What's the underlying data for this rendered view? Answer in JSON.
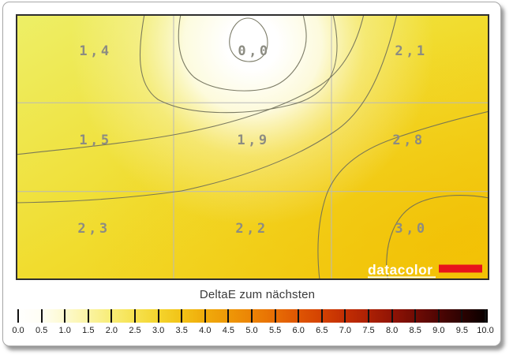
{
  "chart_data": {
    "type": "heatmap",
    "title": "DeltaE zum nächsten",
    "grid": {
      "rows": 3,
      "cols": 3
    },
    "values": [
      [
        1.4,
        0.0,
        2.1
      ],
      [
        1.5,
        1.9,
        2.8
      ],
      [
        2.3,
        2.2,
        3.0
      ]
    ],
    "value_labels": [
      [
        "1,4",
        "0,0",
        "2,1"
      ],
      [
        "1,5",
        "1,9",
        "2,8"
      ],
      [
        "2,3",
        "2,2",
        "3,0"
      ]
    ],
    "value_min_location": "top-center",
    "value_max_location": "bottom-right",
    "colorbar": {
      "min": 0.0,
      "max": 10.0,
      "step": 0.5,
      "tick_labels": [
        "0.0",
        "0.5",
        "1.0",
        "1.5",
        "2.0",
        "2.5",
        "3.0",
        "3.5",
        "4.0",
        "4.5",
        "5.0",
        "5.5",
        "6.0",
        "6.5",
        "7.0",
        "7.5",
        "8.0",
        "8.5",
        "9.0",
        "9.5",
        "10.0"
      ],
      "gradient_stops": [
        "#ffffff",
        "#f8ed78",
        "#f2c317",
        "#ec8305",
        "#df5503",
        "#c22d03",
        "#8f1305",
        "#070000"
      ]
    },
    "legend_position": "bottom",
    "grid_lines": true
  },
  "branding": {
    "logo_text": "datacolor",
    "logo_bar_color": "#e8131b"
  },
  "colors": {
    "contour_line": "#6e6e58",
    "grid_line": "#b9b9b9",
    "value_label": "#8c8c82",
    "map_border": "#2e2e2e"
  }
}
